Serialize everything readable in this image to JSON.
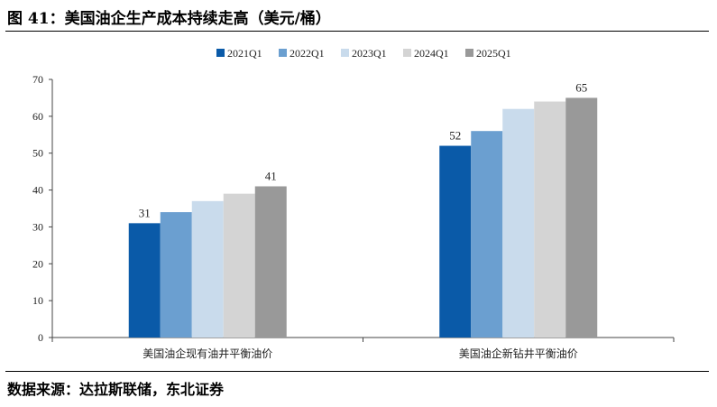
{
  "header": {
    "title": "图 41：美国油企生产成本持续走高（美元/桶）"
  },
  "footer": {
    "source": "数据来源：达拉斯联储，东北证券"
  },
  "chart_data": {
    "type": "bar",
    "categories": [
      "美国油企现有油井平衡油价",
      "美国油企新钻井平衡油价"
    ],
    "series": [
      {
        "name": "2021Q1",
        "values": [
          31,
          52
        ],
        "color": "#0a5aa8",
        "labels": [
          "31",
          "52"
        ]
      },
      {
        "name": "2022Q1",
        "values": [
          34,
          56
        ],
        "color": "#6b9fd0",
        "labels": [
          "",
          ""
        ]
      },
      {
        "name": "2023Q1",
        "values": [
          37,
          62
        ],
        "color": "#c9dbec",
        "labels": [
          "",
          ""
        ]
      },
      {
        "name": "2024Q1",
        "values": [
          39,
          64
        ],
        "color": "#d4d4d4",
        "labels": [
          "",
          ""
        ]
      },
      {
        "name": "2025Q1",
        "values": [
          41,
          65
        ],
        "color": "#999999",
        "labels": [
          "41",
          "65"
        ]
      }
    ],
    "ylim": [
      0,
      70
    ],
    "yticks": [
      "0",
      "10",
      "20",
      "30",
      "40",
      "50",
      "60",
      "70"
    ],
    "legend_position": "top-center",
    "grid": false
  }
}
